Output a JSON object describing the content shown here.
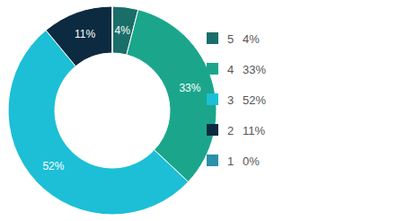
{
  "chart_data": {
    "type": "pie",
    "categories": [
      "5",
      "4",
      "3",
      "2",
      "1"
    ],
    "values": [
      4,
      33,
      52,
      11,
      0
    ],
    "value_labels": [
      "4%",
      "33%",
      "52%",
      "11%",
      "0%"
    ],
    "colors": [
      "#1a6e6a",
      "#1ba68c",
      "#1cbfd6",
      "#0c2b40",
      "#2a91a8"
    ],
    "data_labels": true,
    "legend": "right"
  }
}
